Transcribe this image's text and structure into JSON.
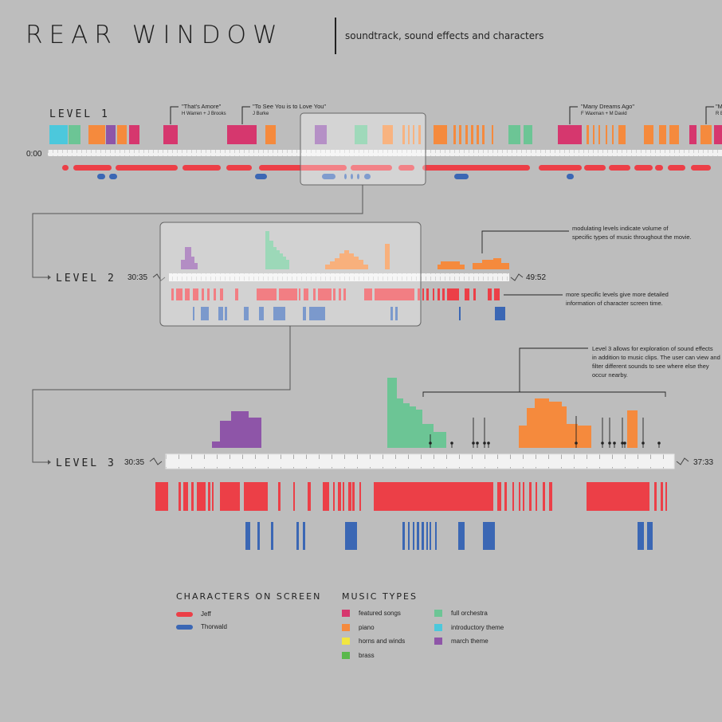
{
  "title": "REAR WINDOW",
  "subtitle": "soundtrack, sound effects and characters",
  "colors": {
    "featured": "#d6376e",
    "piano": "#f58a3d",
    "horns": "#f2e640",
    "brass": "#5ab84b",
    "orchestra": "#6cc595",
    "intro": "#4cc8dc",
    "march": "#8e55a8",
    "jeff": "#ec3f47",
    "thorwald": "#3b67b4"
  },
  "levels": {
    "level1": {
      "label": "LEVEL 1",
      "start": "0:00"
    },
    "level2": {
      "label": "LEVEL 2",
      "start": "30:35",
      "end": "49:52"
    },
    "level3": {
      "label": "LEVEL 3",
      "start": "30:35",
      "end": "37:33"
    }
  },
  "songs": [
    {
      "title": "\"That's Amore\"",
      "credit": "H Warren + J Brooks"
    },
    {
      "title": "\"To See You is to Love You\"",
      "credit": "J Burke"
    },
    {
      "title": "\"Many Dreams Ago\"",
      "credit": "F Waxman + M David"
    },
    {
      "title": "\"M",
      "credit": "R E"
    }
  ],
  "annotations": {
    "volume": [
      "modulating levels indicate volume of",
      "specific types of music throughout the movie."
    ],
    "characters": [
      "more specific levels give more detailed",
      "information of character screen time."
    ],
    "level3": [
      "Level 3 allows for exploration of sound effects",
      "in addition to music clips. The user can view and",
      "filter different sounds to see where else they",
      "occur nearby."
    ]
  },
  "legend": {
    "characters_title": "CHARACTERS ON SCREEN",
    "characters": [
      {
        "name": "Jeff",
        "color": "#ec3f47"
      },
      {
        "name": "Thorwald",
        "color": "#3b67b4"
      }
    ],
    "music_title": "MUSIC TYPES",
    "music": [
      {
        "name": "featured songs",
        "color": "#d6376e"
      },
      {
        "name": "piano",
        "color": "#f58a3d"
      },
      {
        "name": "horns and winds",
        "color": "#f2e640"
      },
      {
        "name": "brass",
        "color": "#5ab84b"
      },
      {
        "name": "full orchestra",
        "color": "#6cc595"
      },
      {
        "name": "introductory theme",
        "color": "#4cc8dc"
      },
      {
        "name": "march theme",
        "color": "#8e55a8"
      }
    ]
  }
}
